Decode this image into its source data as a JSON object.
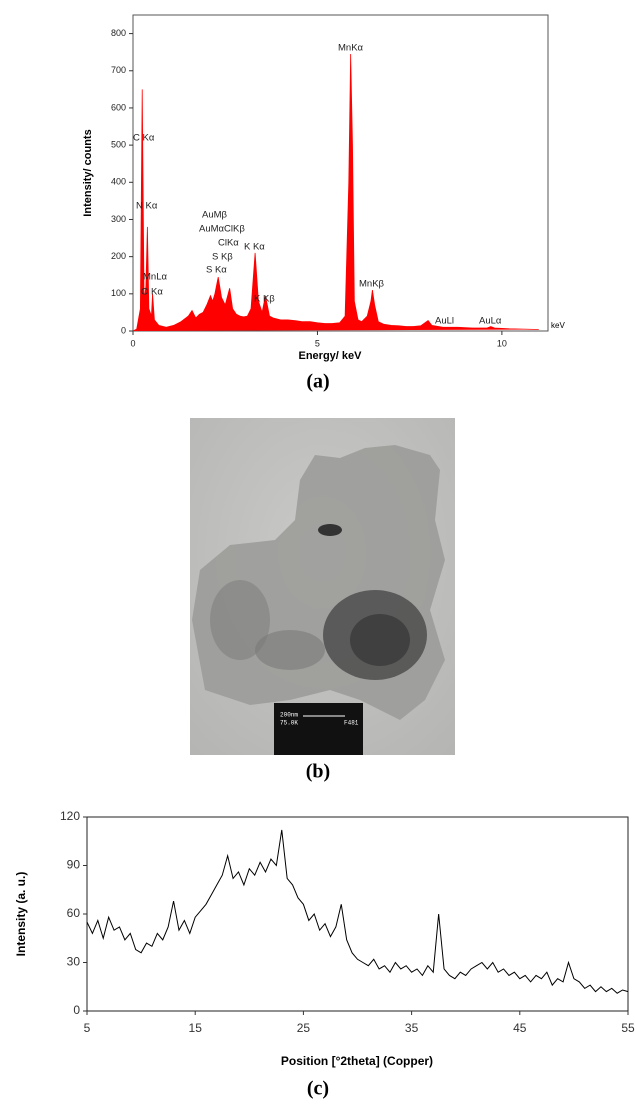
{
  "panel_labels": [
    "(a)",
    "(b)",
    "(c)"
  ],
  "image_b": {
    "scale_bar": "200nm",
    "magnification": "75.0K",
    "code": "F481"
  },
  "chart_data": [
    {
      "type": "area",
      "x_label": "Energy/ keV",
      "y_label": "Intensity/ counts",
      "x_unit": "keV",
      "color": "#ff0000",
      "xlim": [
        0,
        11.25
      ],
      "ylim": [
        0,
        850
      ],
      "xticks": [
        0,
        5,
        10
      ],
      "yticks": [
        0,
        100,
        200,
        300,
        400,
        500,
        600,
        700,
        800
      ],
      "annotations": [
        "C Kα",
        "N Kα",
        "MnLα",
        "O Kα",
        "AuMβ",
        "AuMαClKβ",
        "ClKα",
        "K Kα",
        "S Kβ",
        "S Kα",
        "K Kβ",
        "MnKα",
        "MnKβ",
        "AuLl",
        "AuLα"
      ],
      "x": [
        0,
        0.1,
        0.2,
        0.25,
        0.3,
        0.35,
        0.39,
        0.43,
        0.5,
        0.53,
        0.58,
        0.7,
        0.9,
        1.1,
        1.3,
        1.5,
        1.6,
        1.7,
        1.8,
        1.9,
        2.0,
        2.1,
        2.16,
        2.22,
        2.31,
        2.4,
        2.5,
        2.62,
        2.7,
        2.8,
        2.9,
        3.0,
        3.1,
        3.2,
        3.31,
        3.4,
        3.5,
        3.59,
        3.7,
        3.8,
        4.0,
        4.2,
        4.4,
        4.6,
        4.8,
        5.0,
        5.2,
        5.4,
        5.6,
        5.75,
        5.85,
        5.9,
        5.95,
        6.0,
        6.1,
        6.2,
        6.35,
        6.45,
        6.49,
        6.55,
        6.65,
        6.8,
        7.0,
        7.2,
        7.4,
        7.6,
        7.8,
        8.0,
        8.1,
        8.4,
        8.8,
        9.2,
        9.6,
        9.7,
        9.8,
        10.2,
        10.6,
        11
      ],
      "values": [
        0,
        5,
        60,
        650,
        80,
        120,
        280,
        60,
        40,
        100,
        30,
        15,
        10,
        15,
        25,
        40,
        55,
        35,
        45,
        50,
        70,
        95,
        80,
        100,
        145,
        90,
        70,
        115,
        60,
        45,
        40,
        38,
        40,
        60,
        210,
        80,
        50,
        95,
        40,
        35,
        30,
        30,
        28,
        25,
        25,
        22,
        20,
        20,
        22,
        40,
        400,
        745,
        500,
        80,
        30,
        25,
        40,
        80,
        110,
        70,
        25,
        18,
        15,
        14,
        12,
        12,
        14,
        28,
        15,
        10,
        10,
        8,
        8,
        12,
        8,
        6,
        5,
        4
      ]
    },
    {
      "type": "line",
      "x_label": "Position [°2theta] (Copper)",
      "y_label": "Intensity (a. u.)",
      "color": "#000000",
      "xlim": [
        5,
        55
      ],
      "ylim": [
        0,
        120
      ],
      "xticks": [
        5,
        15,
        25,
        35,
        45,
        55
      ],
      "yticks": [
        0,
        30,
        60,
        90,
        120
      ],
      "x": [
        5,
        5.5,
        6,
        6.5,
        7,
        7.5,
        8,
        8.5,
        9,
        9.5,
        10,
        10.5,
        11,
        11.5,
        12,
        12.5,
        13,
        13.5,
        14,
        14.5,
        15,
        15.5,
        16,
        16.5,
        17,
        17.5,
        18,
        18.5,
        19,
        19.5,
        20,
        20.5,
        21,
        21.5,
        22,
        22.5,
        23,
        23.5,
        24,
        24.5,
        25,
        25.5,
        26,
        26.5,
        27,
        27.5,
        28,
        28.5,
        29,
        29.5,
        30,
        30.5,
        31,
        31.5,
        32,
        32.5,
        33,
        33.5,
        34,
        34.5,
        35,
        35.5,
        36,
        36.5,
        37,
        37.5,
        38,
        38.5,
        39,
        39.5,
        40,
        40.5,
        41,
        41.5,
        42,
        42.5,
        43,
        43.5,
        44,
        44.5,
        45,
        45.5,
        46,
        46.5,
        47,
        47.5,
        48,
        48.5,
        49,
        49.5,
        50,
        50.5,
        51,
        51.5,
        52,
        52.5,
        53,
        53.5,
        54,
        54.5,
        55
      ],
      "values": [
        55,
        48,
        56,
        45,
        58,
        50,
        52,
        44,
        48,
        38,
        36,
        42,
        40,
        48,
        44,
        52,
        68,
        50,
        56,
        48,
        58,
        62,
        66,
        72,
        78,
        84,
        96,
        82,
        86,
        78,
        88,
        84,
        92,
        86,
        94,
        90,
        112,
        82,
        78,
        70,
        66,
        56,
        60,
        50,
        54,
        46,
        52,
        66,
        44,
        36,
        32,
        30,
        28,
        32,
        26,
        28,
        24,
        30,
        26,
        28,
        24,
        26,
        22,
        28,
        24,
        60,
        26,
        22,
        20,
        24,
        22,
        26,
        28,
        30,
        26,
        30,
        24,
        26,
        22,
        24,
        20,
        22,
        18,
        22,
        20,
        24,
        16,
        20,
        18,
        30,
        20,
        18,
        14,
        16,
        12,
        15,
        12,
        14,
        11,
        13,
        12
      ]
    }
  ]
}
